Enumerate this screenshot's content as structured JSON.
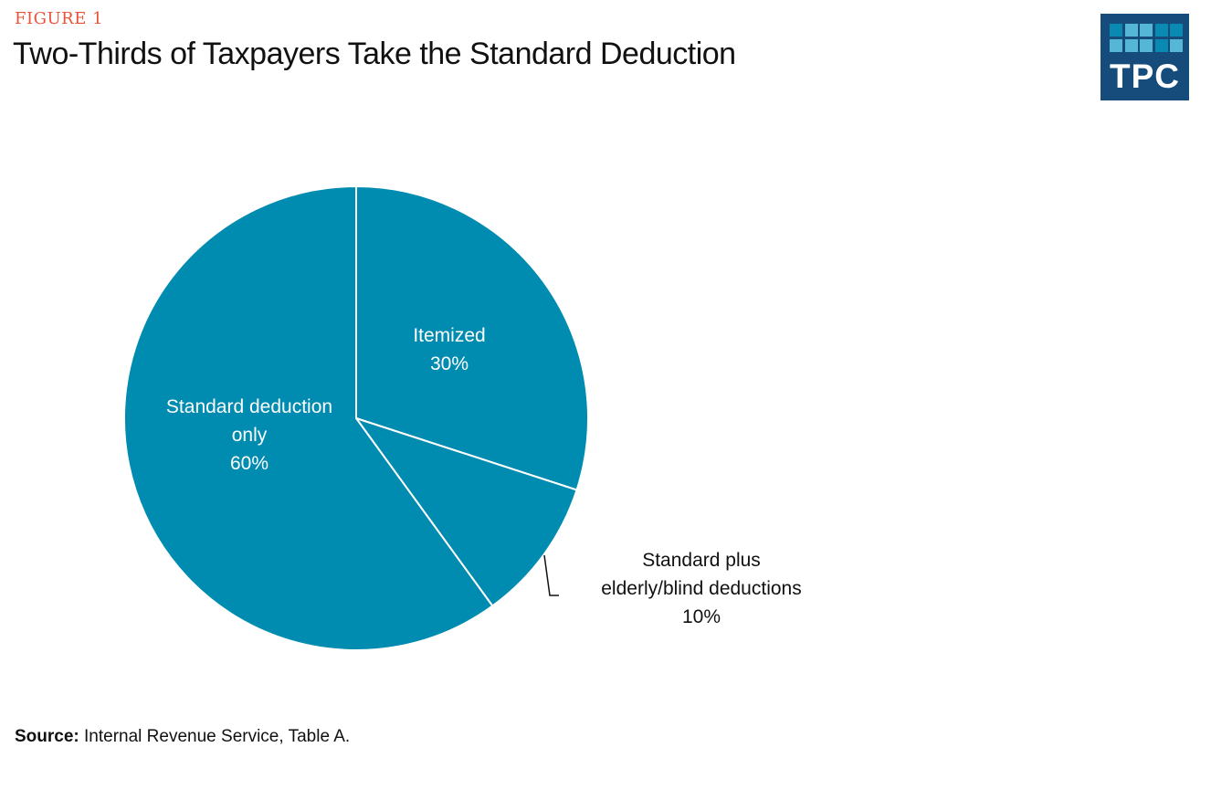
{
  "figure_label": "FIGURE 1",
  "logo_text": "TPC",
  "colors": {
    "slice": "#008bb0",
    "accent": "#e8543a",
    "logo_bg": "#154c7c",
    "logo_sq_dark": "#0a8ab2",
    "logo_sq_light": "#55b6d6"
  },
  "source": {
    "label": "Source:",
    "text": "Internal Revenue Service, Table A."
  },
  "chart_data": {
    "type": "pie",
    "title": "Two-Thirds of Taxpayers Take the Standard Deduction",
    "slices": [
      {
        "name": "Itemized",
        "value": 30,
        "label_lines": [
          "Itemized",
          "30%"
        ]
      },
      {
        "name": "Standard plus elderly/blind deductions",
        "value": 10,
        "label_lines": [
          "Standard plus",
          "elderly/blind deductions",
          "10%"
        ]
      },
      {
        "name": "Standard deduction only",
        "value": 60,
        "label_lines": [
          "Standard deduction",
          "only",
          "60%"
        ]
      }
    ],
    "start_angle": "12 o'clock",
    "direction": "clockwise"
  }
}
